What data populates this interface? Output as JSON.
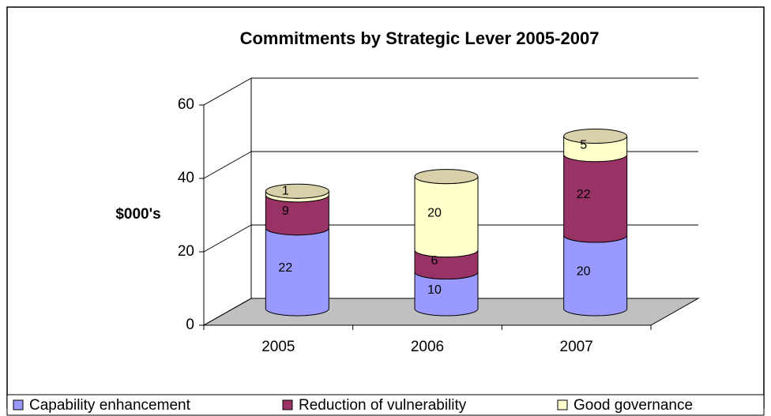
{
  "chart_data": {
    "type": "bar3d_stacked_cylinder",
    "title": "Commitments by Strategic Lever 2005-2007",
    "y_label": "$000's",
    "categories": [
      "2005",
      "2006",
      "2007"
    ],
    "series": [
      {
        "name": "Capability enhancement",
        "color": "#9999ff",
        "values": [
          22,
          10,
          20
        ]
      },
      {
        "name": "Reduction of vulnerability",
        "color": "#993366",
        "values": [
          9,
          6,
          22
        ]
      },
      {
        "name": "Good governance",
        "color": "#ffffcc",
        "values": [
          1,
          20,
          5
        ]
      }
    ],
    "ylim": [
      0,
      60
    ],
    "yticks": [
      0,
      20,
      40,
      60
    ],
    "grid": true,
    "legend": "bottom"
  }
}
